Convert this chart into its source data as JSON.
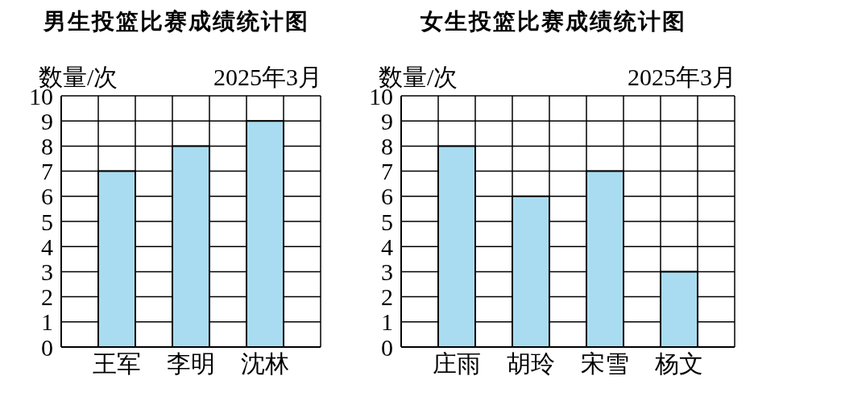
{
  "chart_data": [
    {
      "type": "bar",
      "title": "男生投篮比赛成绩统计图",
      "ylabel": "数量/次",
      "annotations": [
        "2025年3月"
      ],
      "categories": [
        "王军",
        "李明",
        "沈林"
      ],
      "values": [
        7,
        8,
        9
      ],
      "color": "#a9dcf0",
      "ylim": [
        0,
        10
      ],
      "yticks": [
        0,
        1,
        2,
        3,
        4,
        5,
        6,
        7,
        8,
        9,
        10
      ],
      "grid": true
    },
    {
      "type": "bar",
      "title": "女生投篮比赛成绩统计图",
      "ylabel": "数量/次",
      "annotations": [
        "2025年3月"
      ],
      "categories": [
        "庄雨",
        "胡玲",
        "宋雪",
        "杨文"
      ],
      "values": [
        8,
        6,
        7,
        3
      ],
      "color": "#a9dcf0",
      "ylim": [
        0,
        10
      ],
      "yticks": [
        0,
        1,
        2,
        3,
        4,
        5,
        6,
        7,
        8,
        9,
        10
      ],
      "grid": true
    }
  ]
}
